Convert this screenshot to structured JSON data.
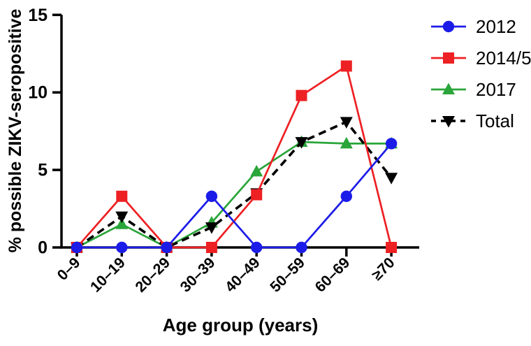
{
  "figure": {
    "background": "#ffffff",
    "axis_color": "#000000"
  },
  "chart_data": {
    "type": "line",
    "title": "",
    "xlabel": "Age group (years)",
    "ylabel": "% possible ZIKV-seropositive",
    "categories": [
      "0–9",
      "10–19",
      "20–29",
      "30–39",
      "40–49",
      "50–59",
      "60–69",
      "≥70"
    ],
    "series": [
      {
        "name": "2012",
        "color": "#1c1ce8",
        "marker": "circle",
        "line": "solid",
        "values": [
          0,
          0,
          0,
          3.3,
          0,
          0,
          3.3,
          6.7
        ]
      },
      {
        "name": "2014/5",
        "color": "#ed2024",
        "marker": "square",
        "line": "solid",
        "values": [
          0,
          3.3,
          0,
          0,
          3.4,
          9.8,
          11.7,
          0
        ]
      },
      {
        "name": "2017",
        "color": "#2aa53a",
        "marker": "triangle-up",
        "line": "solid",
        "values": [
          0,
          1.5,
          0,
          1.6,
          4.9,
          6.8,
          6.7,
          6.7
        ]
      },
      {
        "name": "Total",
        "color": "#000000",
        "marker": "triangle-down",
        "line": "dashed",
        "values": [
          0,
          2.0,
          0,
          1.3,
          3.5,
          6.8,
          8.1,
          4.5
        ]
      }
    ],
    "ylim": [
      0,
      15
    ],
    "yticks": [
      0,
      5,
      10,
      15
    ],
    "grid": false,
    "legend_position": "right",
    "draw_order": [
      2,
      3,
      1,
      0
    ]
  }
}
